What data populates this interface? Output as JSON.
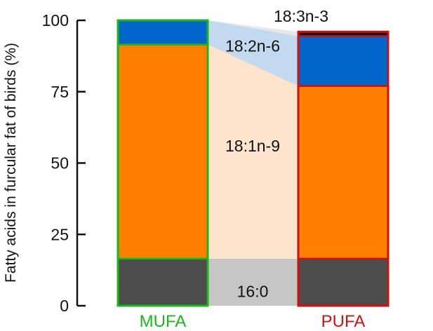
{
  "chart_data": {
    "type": "bar",
    "stacked": true,
    "ylabel": "Fatty acids in furcular fat of birds (%)",
    "ylim": [
      0,
      100
    ],
    "yticks": [
      "0",
      "25",
      "50",
      "75",
      "100"
    ],
    "categories": [
      "MUFA",
      "PUFA"
    ],
    "category_colors": [
      "#1db51d",
      "#cc1111"
    ],
    "series": [
      {
        "name": "16:0",
        "values": [
          16.5,
          16.5
        ],
        "color": "#4d4d4d",
        "band_color": "#c6c6c6"
      },
      {
        "name": "18:1n-9",
        "values": [
          75,
          60.5
        ],
        "color": "#ff7f00",
        "band_color": "#fde4cc"
      },
      {
        "name": "18:2n-6",
        "values": [
          8.5,
          17.5
        ],
        "color": "#0066cc",
        "band_color": "#c3d9f0"
      },
      {
        "name": "18:3n-3",
        "values": [
          0,
          1.5
        ],
        "color": "#111111",
        "band_color": "#e8e8e8"
      }
    ]
  }
}
